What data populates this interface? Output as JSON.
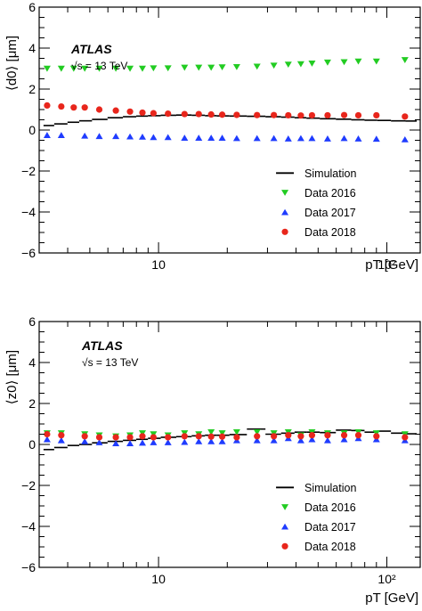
{
  "chart_data": [
    {
      "type": "scatter",
      "panel": "top",
      "label": "ATLAS",
      "energy_label": "√s = 13 TeV",
      "ylabel": "⟨d0⟩ [μm]",
      "xlabel": "pT [GeV]",
      "xscale": "log",
      "xlim": [
        3,
        140
      ],
      "ylim": [
        -6,
        6
      ],
      "y_ticks": [
        "−6",
        "−4",
        "−2",
        "0",
        "2",
        "4",
        "6"
      ],
      "x_tick_labels": [
        "10",
        "10²"
      ],
      "legend_position": "bottom-right",
      "series": [
        {
          "name": "Simulation",
          "marker": "line",
          "color": "#000000",
          "points": [
            [
              3.25,
              0.22
            ],
            [
              3.75,
              0.3
            ],
            [
              4.25,
              0.38
            ],
            [
              4.75,
              0.45
            ],
            [
              5.5,
              0.52
            ],
            [
              6.5,
              0.6
            ],
            [
              7.5,
              0.65
            ],
            [
              8.5,
              0.68
            ],
            [
              9.5,
              0.7
            ],
            [
              11,
              0.72
            ],
            [
              13,
              0.73
            ],
            [
              15,
              0.72
            ],
            [
              17,
              0.7
            ],
            [
              19,
              0.69
            ],
            [
              22,
              0.68
            ],
            [
              27,
              0.67
            ],
            [
              32,
              0.65
            ],
            [
              37,
              0.63
            ],
            [
              42,
              0.6
            ],
            [
              47,
              0.58
            ],
            [
              55,
              0.55
            ],
            [
              65,
              0.53
            ],
            [
              75,
              0.5
            ],
            [
              85,
              0.48
            ],
            [
              97,
              0.47
            ],
            [
              112,
              0.45
            ],
            [
              130,
              0.44
            ]
          ]
        },
        {
          "name": "Data 2016",
          "marker": "triangle-down",
          "color": "#22cc22",
          "points": [
            [
              3.25,
              3.0
            ],
            [
              3.75,
              3.0
            ],
            [
              4.25,
              3.0
            ],
            [
              4.75,
              3.0
            ],
            [
              5.5,
              3.0
            ],
            [
              6.5,
              3.0
            ],
            [
              7.5,
              3.0
            ],
            [
              8.5,
              3.0
            ],
            [
              9.5,
              3.02
            ],
            [
              11,
              3.02
            ],
            [
              13,
              3.05
            ],
            [
              15,
              3.05
            ],
            [
              17,
              3.05
            ],
            [
              19,
              3.07
            ],
            [
              22,
              3.08
            ],
            [
              27,
              3.1
            ],
            [
              32,
              3.15
            ],
            [
              37,
              3.2
            ],
            [
              42,
              3.22
            ],
            [
              47,
              3.25
            ],
            [
              55,
              3.3
            ],
            [
              65,
              3.32
            ],
            [
              75,
              3.35
            ],
            [
              90,
              3.35
            ],
            [
              120,
              3.42
            ]
          ]
        },
        {
          "name": "Data 2017",
          "marker": "triangle-up",
          "color": "#1f3cff",
          "points": [
            [
              3.25,
              -0.25
            ],
            [
              3.75,
              -0.25
            ],
            [
              4.75,
              -0.28
            ],
            [
              5.5,
              -0.3
            ],
            [
              6.5,
              -0.3
            ],
            [
              7.5,
              -0.32
            ],
            [
              8.5,
              -0.33
            ],
            [
              9.5,
              -0.35
            ],
            [
              11,
              -0.35
            ],
            [
              13,
              -0.38
            ],
            [
              15,
              -0.38
            ],
            [
              17,
              -0.38
            ],
            [
              19,
              -0.38
            ],
            [
              22,
              -0.4
            ],
            [
              27,
              -0.4
            ],
            [
              32,
              -0.4
            ],
            [
              37,
              -0.42
            ],
            [
              42,
              -0.4
            ],
            [
              47,
              -0.4
            ],
            [
              55,
              -0.42
            ],
            [
              65,
              -0.4
            ],
            [
              75,
              -0.42
            ],
            [
              90,
              -0.43
            ],
            [
              120,
              -0.46
            ]
          ]
        },
        {
          "name": "Data 2018",
          "marker": "circle",
          "color": "#e8261c",
          "points": [
            [
              3.25,
              1.2
            ],
            [
              3.75,
              1.15
            ],
            [
              4.25,
              1.1
            ],
            [
              4.75,
              1.1
            ],
            [
              5.5,
              1.0
            ],
            [
              6.5,
              0.95
            ],
            [
              7.5,
              0.9
            ],
            [
              8.5,
              0.85
            ],
            [
              9.5,
              0.82
            ],
            [
              11,
              0.8
            ],
            [
              13,
              0.78
            ],
            [
              15,
              0.78
            ],
            [
              17,
              0.76
            ],
            [
              19,
              0.75
            ],
            [
              22,
              0.74
            ],
            [
              27,
              0.73
            ],
            [
              32,
              0.73
            ],
            [
              37,
              0.72
            ],
            [
              42,
              0.71
            ],
            [
              47,
              0.72
            ],
            [
              55,
              0.72
            ],
            [
              65,
              0.73
            ],
            [
              75,
              0.72
            ],
            [
              90,
              0.72
            ],
            [
              120,
              0.66
            ]
          ]
        }
      ]
    },
    {
      "type": "scatter",
      "panel": "bottom",
      "label": "ATLAS",
      "energy_label": "√s = 13 TeV",
      "ylabel": "⟨z0⟩ [μm]",
      "xlabel": "pT [GeV]",
      "xscale": "log",
      "xlim": [
        3,
        140
      ],
      "ylim": [
        -6,
        6
      ],
      "y_ticks": [
        "−6",
        "−4",
        "−2",
        "0",
        "2",
        "4",
        "6"
      ],
      "x_tick_labels": [
        "10",
        "10²"
      ],
      "legend_position": "bottom-right",
      "series": [
        {
          "name": "Simulation",
          "marker": "line",
          "color": "#000000",
          "points": [
            [
              3.25,
              -0.25
            ],
            [
              3.75,
              -0.15
            ],
            [
              4.25,
              -0.05
            ],
            [
              4.75,
              0.0
            ],
            [
              5.5,
              0.08
            ],
            [
              6.5,
              0.15
            ],
            [
              7.5,
              0.2
            ],
            [
              8.5,
              0.25
            ],
            [
              9.5,
              0.3
            ],
            [
              11,
              0.35
            ],
            [
              13,
              0.38
            ],
            [
              15,
              0.42
            ],
            [
              17,
              0.45
            ],
            [
              19,
              0.45
            ],
            [
              22,
              0.48
            ],
            [
              27,
              0.75
            ],
            [
              32,
              0.5
            ],
            [
              37,
              0.55
            ],
            [
              42,
              0.6
            ],
            [
              47,
              0.6
            ],
            [
              55,
              0.58
            ],
            [
              65,
              0.7
            ],
            [
              75,
              0.68
            ],
            [
              85,
              0.6
            ],
            [
              97,
              0.65
            ],
            [
              112,
              0.55
            ],
            [
              130,
              0.52
            ]
          ]
        },
        {
          "name": "Data 2016",
          "marker": "triangle-down",
          "color": "#22cc22",
          "points": [
            [
              3.25,
              0.55
            ],
            [
              3.75,
              0.55
            ],
            [
              4.75,
              0.5
            ],
            [
              5.5,
              0.45
            ],
            [
              6.5,
              0.4
            ],
            [
              7.5,
              0.45
            ],
            [
              8.5,
              0.55
            ],
            [
              9.5,
              0.5
            ],
            [
              11,
              0.45
            ],
            [
              13,
              0.55
            ],
            [
              15,
              0.5
            ],
            [
              17,
              0.6
            ],
            [
              19,
              0.55
            ],
            [
              22,
              0.6
            ],
            [
              27,
              0.6
            ],
            [
              32,
              0.55
            ],
            [
              37,
              0.6
            ],
            [
              42,
              0.45
            ],
            [
              47,
              0.6
            ],
            [
              55,
              0.55
            ],
            [
              65,
              0.55
            ],
            [
              75,
              0.6
            ],
            [
              90,
              0.55
            ],
            [
              120,
              0.5
            ]
          ]
        },
        {
          "name": "Data 2017",
          "marker": "triangle-up",
          "color": "#1f3cff",
          "points": [
            [
              3.25,
              0.25
            ],
            [
              3.75,
              0.2
            ],
            [
              4.75,
              0.15
            ],
            [
              5.5,
              0.1
            ],
            [
              6.5,
              0.05
            ],
            [
              7.5,
              0.05
            ],
            [
              8.5,
              0.08
            ],
            [
              9.5,
              0.1
            ],
            [
              11,
              0.1
            ],
            [
              13,
              0.12
            ],
            [
              15,
              0.15
            ],
            [
              17,
              0.15
            ],
            [
              19,
              0.15
            ],
            [
              22,
              0.2
            ],
            [
              27,
              0.2
            ],
            [
              32,
              0.2
            ],
            [
              37,
              0.3
            ],
            [
              42,
              0.2
            ],
            [
              47,
              0.25
            ],
            [
              55,
              0.2
            ],
            [
              65,
              0.25
            ],
            [
              75,
              0.3
            ],
            [
              90,
              0.25
            ],
            [
              120,
              0.2
            ]
          ]
        },
        {
          "name": "Data 2018",
          "marker": "circle",
          "color": "#e8261c",
          "points": [
            [
              3.25,
              0.5
            ],
            [
              3.75,
              0.45
            ],
            [
              4.75,
              0.4
            ],
            [
              5.5,
              0.35
            ],
            [
              6.5,
              0.35
            ],
            [
              7.5,
              0.35
            ],
            [
              8.5,
              0.4
            ],
            [
              9.5,
              0.35
            ],
            [
              11,
              0.35
            ],
            [
              13,
              0.4
            ],
            [
              15,
              0.4
            ],
            [
              17,
              0.38
            ],
            [
              19,
              0.38
            ],
            [
              22,
              0.35
            ],
            [
              27,
              0.4
            ],
            [
              32,
              0.4
            ],
            [
              37,
              0.45
            ],
            [
              42,
              0.4
            ],
            [
              47,
              0.45
            ],
            [
              55,
              0.45
            ],
            [
              65,
              0.45
            ],
            [
              75,
              0.45
            ],
            [
              90,
              0.4
            ],
            [
              120,
              0.35
            ]
          ]
        }
      ]
    }
  ]
}
